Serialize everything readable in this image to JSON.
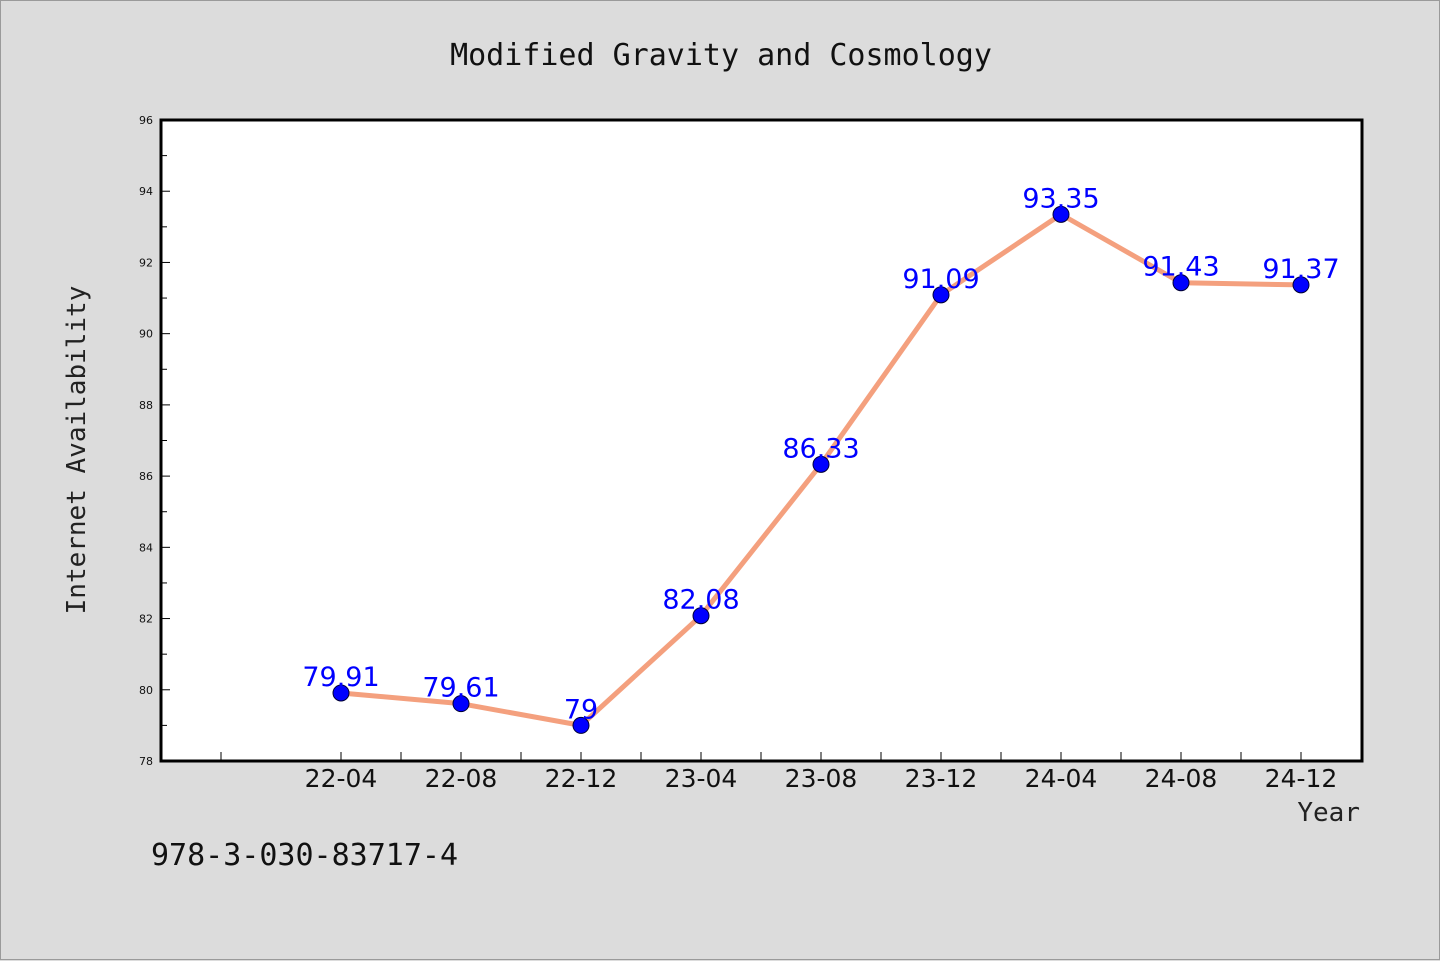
{
  "chart_data": {
    "type": "line",
    "title": "Modified Gravity and Cosmology",
    "xlabel": "Year",
    "ylabel": "Internet Availability",
    "categories": [
      "22-04",
      "22-08",
      "22-12",
      "23-04",
      "23-08",
      "23-12",
      "24-04",
      "24-08",
      "24-12"
    ],
    "series": [
      {
        "values": [
          79.91,
          79.61,
          79,
          82.08,
          86.33,
          91.09,
          93.35,
          91.43,
          91.37
        ],
        "data_labels": [
          "79.91",
          "79.61",
          "79",
          "82.08",
          "86.33",
          "91.09",
          "93.35",
          "91.43",
          "91.37"
        ]
      }
    ],
    "ylim": [
      78,
      96
    ],
    "yticks": [
      78,
      80,
      82,
      84,
      86,
      88,
      90,
      92,
      94,
      96
    ],
    "grid": false,
    "legend": "none"
  },
  "footer": {
    "id_text": "978-3-030-83717-4"
  },
  "colors": {
    "background": "#dcdcdc",
    "plot_area": "#ffffff",
    "line": "#f4a07e",
    "marker": "#0000ff",
    "data_label": "#0000ff",
    "axis": "#000000"
  }
}
